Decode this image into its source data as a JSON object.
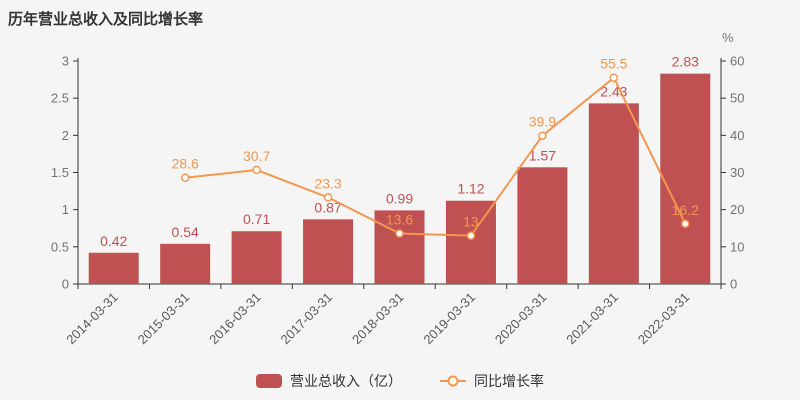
{
  "title": "历年营业总收入及同比增长率",
  "chart_data": {
    "type": "bar",
    "subtype": "bar-line-combo",
    "categories": [
      "2014-03-31",
      "2015-03-31",
      "2016-03-31",
      "2017-03-31",
      "2018-03-31",
      "2019-03-31",
      "2020-03-31",
      "2021-03-31",
      "2022-03-31"
    ],
    "series": [
      {
        "name": "营业总收入（亿）",
        "type": "bar",
        "axis": "left",
        "color": "#bf5152",
        "values": [
          0.42,
          0.54,
          0.71,
          0.87,
          0.99,
          1.12,
          1.57,
          2.43,
          2.83
        ]
      },
      {
        "name": "同比增长率",
        "type": "line",
        "axis": "right",
        "color": "#f39750",
        "values": [
          null,
          28.6,
          30.7,
          23.3,
          13.6,
          13,
          39.9,
          55.5,
          16.2
        ]
      }
    ],
    "left_axis": {
      "min": 0,
      "max": 3,
      "tick_labels": [
        "0",
        "0.5",
        "1",
        "1.5",
        "2",
        "2.5",
        "3"
      ]
    },
    "right_axis": {
      "min": 0,
      "max": 60,
      "unit": "%",
      "tick_labels": [
        "0",
        "10",
        "20",
        "30",
        "40",
        "50",
        "60"
      ]
    },
    "legend": [
      "营业总收入（亿）",
      "同比增长率"
    ],
    "legend_position": "bottom",
    "grid": false
  },
  "colors": {
    "background": "#f5f5f6",
    "axis_line": "#333333",
    "axis_tick_text": "#737373",
    "x_label_text": "#595959",
    "bar": "#bf5152",
    "bar_label": "#bf5152",
    "line": "#f39750",
    "line_label": "#f39750",
    "marker_fill": "#ffffff",
    "title_text": "#333333",
    "legend_text": "#333333"
  }
}
